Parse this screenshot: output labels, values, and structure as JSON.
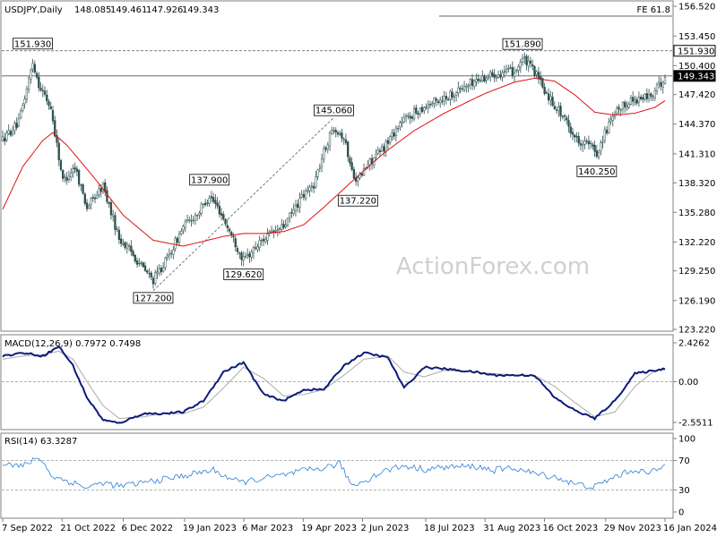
{
  "chart_data": {
    "type": "candlestick",
    "instrument": "USDJPY",
    "timeframe": "Daily",
    "header": {
      "title": "USDJPY,Daily",
      "ohlc": [
        "148.085",
        "149.461",
        "147.926",
        "149.343"
      ]
    },
    "watermark": "ActionForex.com",
    "fe_label": "FE 61.8",
    "price_axis": {
      "range": [
        123.22,
        156.52
      ],
      "ticks": [
        "156.520",
        "153.450",
        "150.400",
        "147.420",
        "144.370",
        "141.310",
        "138.320",
        "135.280",
        "132.220",
        "129.250",
        "126.190",
        "123.220"
      ]
    },
    "time_axis": {
      "ticks": [
        "7 Sep 2022",
        "21 Oct 2022",
        "6 Dec 2022",
        "19 Jan 2023",
        "6 Mar 2023",
        "19 Apr 2023",
        "2 Jun 2023",
        "18 Jul 2023",
        "31 Aug 2023",
        "16 Oct 2023",
        "29 Nov 2023",
        "16 Jan 2024"
      ]
    },
    "last_price": "149.343",
    "horizontal_levels": [
      {
        "label": "151.930",
        "value": 151.93,
        "style": "dashed"
      },
      {
        "label": "149.343",
        "value": 149.343,
        "style": "solid"
      }
    ],
    "price_labels": [
      {
        "text": "151.930",
        "date_index": 15
      },
      {
        "text": "127.200",
        "date_index": 75
      },
      {
        "text": "137.900",
        "date_index": 103
      },
      {
        "text": "129.620",
        "date_index": 120
      },
      {
        "text": "145.060",
        "date_index": 165
      },
      {
        "text": "137.220",
        "date_index": 177
      },
      {
        "text": "151.890",
        "date_index": 259
      },
      {
        "text": "140.250",
        "date_index": 296
      }
    ],
    "series": [
      {
        "name": "Price",
        "type": "candles",
        "keypoints": [
          [
            0,
            142.8
          ],
          [
            8,
            144.5
          ],
          [
            12,
            148.0
          ],
          [
            15,
            150.8
          ],
          [
            18,
            148.5
          ],
          [
            24,
            146.0
          ],
          [
            30,
            138.5
          ],
          [
            36,
            140.0
          ],
          [
            42,
            135.8
          ],
          [
            50,
            138.0
          ],
          [
            58,
            132.6
          ],
          [
            64,
            131.2
          ],
          [
            70,
            129.5
          ],
          [
            75,
            128.3
          ],
          [
            82,
            130.5
          ],
          [
            90,
            133.8
          ],
          [
            98,
            135.4
          ],
          [
            103,
            137.0
          ],
          [
            108,
            135.5
          ],
          [
            115,
            132.5
          ],
          [
            120,
            130.3
          ],
          [
            130,
            132.6
          ],
          [
            140,
            133.8
          ],
          [
            148,
            136.5
          ],
          [
            155,
            138.2
          ],
          [
            160,
            141.5
          ],
          [
            165,
            144.2
          ],
          [
            170,
            143.0
          ],
          [
            174,
            139.5
          ],
          [
            177,
            138.6
          ],
          [
            182,
            140.2
          ],
          [
            190,
            142.0
          ],
          [
            198,
            144.5
          ],
          [
            210,
            146.2
          ],
          [
            222,
            147.3
          ],
          [
            235,
            148.8
          ],
          [
            245,
            149.6
          ],
          [
            255,
            149.8
          ],
          [
            259,
            151.1
          ],
          [
            265,
            149.8
          ],
          [
            270,
            147.8
          ],
          [
            278,
            145.5
          ],
          [
            286,
            142.8
          ],
          [
            292,
            142.3
          ],
          [
            296,
            141.3
          ],
          [
            300,
            143.5
          ],
          [
            306,
            145.6
          ],
          [
            312,
            146.8
          ],
          [
            318,
            147.0
          ],
          [
            324,
            147.4
          ],
          [
            330,
            149.3
          ]
        ]
      },
      {
        "name": "SMA",
        "type": "line",
        "color": "#dd1111",
        "keypoints": [
          [
            0,
            135.6
          ],
          [
            10,
            140.0
          ],
          [
            20,
            142.7
          ],
          [
            25,
            143.5
          ],
          [
            32,
            142.2
          ],
          [
            45,
            139.0
          ],
          [
            60,
            135.0
          ],
          [
            75,
            132.4
          ],
          [
            90,
            131.8
          ],
          [
            100,
            132.3
          ],
          [
            110,
            132.8
          ],
          [
            120,
            133.1
          ],
          [
            130,
            133.1
          ],
          [
            140,
            133.3
          ],
          [
            150,
            134.0
          ],
          [
            160,
            135.8
          ],
          [
            170,
            137.7
          ],
          [
            180,
            139.6
          ],
          [
            190,
            141.4
          ],
          [
            205,
            143.7
          ],
          [
            220,
            145.5
          ],
          [
            240,
            147.5
          ],
          [
            255,
            148.7
          ],
          [
            265,
            149.1
          ],
          [
            275,
            148.8
          ],
          [
            285,
            147.4
          ],
          [
            295,
            145.6
          ],
          [
            305,
            145.3
          ],
          [
            315,
            145.5
          ],
          [
            325,
            146.1
          ],
          [
            330,
            146.8
          ]
        ]
      }
    ],
    "macd": {
      "label": "MACD(12,26,9) 0.7972 0.7498",
      "range": [
        -2.5511,
        2.4262
      ],
      "ticks": [
        "2.4262",
        "0.00",
        "-2.5511"
      ],
      "main_keypoints": [
        [
          0,
          1.6
        ],
        [
          10,
          1.8
        ],
        [
          20,
          1.6
        ],
        [
          28,
          2.2
        ],
        [
          35,
          1.0
        ],
        [
          42,
          -1.0
        ],
        [
          50,
          -2.4
        ],
        [
          58,
          -2.6
        ],
        [
          70,
          -2.0
        ],
        [
          80,
          -2.0
        ],
        [
          90,
          -1.9
        ],
        [
          100,
          -1.2
        ],
        [
          110,
          0.6
        ],
        [
          120,
          1.2
        ],
        [
          130,
          -0.8
        ],
        [
          140,
          -1.2
        ],
        [
          150,
          -0.5
        ],
        [
          160,
          -0.5
        ],
        [
          170,
          1.0
        ],
        [
          180,
          1.8
        ],
        [
          192,
          1.5
        ],
        [
          200,
          -0.4
        ],
        [
          210,
          0.9
        ],
        [
          220,
          0.8
        ],
        [
          235,
          0.6
        ],
        [
          245,
          0.4
        ],
        [
          255,
          0.4
        ],
        [
          265,
          0.4
        ],
        [
          275,
          -1.0
        ],
        [
          285,
          -1.8
        ],
        [
          295,
          -2.3
        ],
        [
          305,
          -1.2
        ],
        [
          315,
          0.5
        ],
        [
          325,
          0.7
        ],
        [
          330,
          0.8
        ]
      ],
      "signal_keypoints": [
        [
          0,
          1.4
        ],
        [
          10,
          1.6
        ],
        [
          20,
          1.7
        ],
        [
          28,
          1.9
        ],
        [
          35,
          1.4
        ],
        [
          42,
          0.0
        ],
        [
          50,
          -1.5
        ],
        [
          58,
          -2.3
        ],
        [
          70,
          -2.2
        ],
        [
          80,
          -2.0
        ],
        [
          90,
          -2.0
        ],
        [
          100,
          -1.6
        ],
        [
          110,
          -0.4
        ],
        [
          120,
          0.9
        ],
        [
          130,
          0.2
        ],
        [
          140,
          -0.9
        ],
        [
          150,
          -0.8
        ],
        [
          160,
          -0.5
        ],
        [
          170,
          0.4
        ],
        [
          180,
          1.4
        ],
        [
          192,
          1.6
        ],
        [
          200,
          0.6
        ],
        [
          210,
          0.3
        ],
        [
          220,
          0.7
        ],
        [
          235,
          0.6
        ],
        [
          245,
          0.5
        ],
        [
          255,
          0.4
        ],
        [
          265,
          0.4
        ],
        [
          275,
          -0.3
        ],
        [
          285,
          -1.3
        ],
        [
          295,
          -2.2
        ],
        [
          305,
          -1.9
        ],
        [
          315,
          -0.3
        ],
        [
          325,
          0.7
        ],
        [
          330,
          0.75
        ]
      ]
    },
    "rsi": {
      "label": "RSI(14) 63.3287",
      "range": [
        0,
        100
      ],
      "ticks": [
        "100",
        "70",
        "30",
        "0"
      ],
      "levels": [
        70,
        30
      ],
      "keypoints": [
        [
          0,
          68
        ],
        [
          10,
          62
        ],
        [
          18,
          75
        ],
        [
          25,
          48
        ],
        [
          35,
          40
        ],
        [
          42,
          33
        ],
        [
          50,
          40
        ],
        [
          58,
          35
        ],
        [
          66,
          38
        ],
        [
          74,
          42
        ],
        [
          84,
          46
        ],
        [
          95,
          52
        ],
        [
          105,
          57
        ],
        [
          110,
          50
        ],
        [
          118,
          40
        ],
        [
          128,
          45
        ],
        [
          140,
          50
        ],
        [
          150,
          56
        ],
        [
          160,
          60
        ],
        [
          168,
          66
        ],
        [
          174,
          36
        ],
        [
          180,
          42
        ],
        [
          190,
          56
        ],
        [
          200,
          63
        ],
        [
          210,
          58
        ],
        [
          220,
          61
        ],
        [
          235,
          62
        ],
        [
          245,
          57
        ],
        [
          255,
          60
        ],
        [
          265,
          52
        ],
        [
          275,
          48
        ],
        [
          285,
          38
        ],
        [
          295,
          34
        ],
        [
          305,
          48
        ],
        [
          315,
          58
        ],
        [
          322,
          52
        ],
        [
          330,
          63
        ]
      ]
    }
  }
}
